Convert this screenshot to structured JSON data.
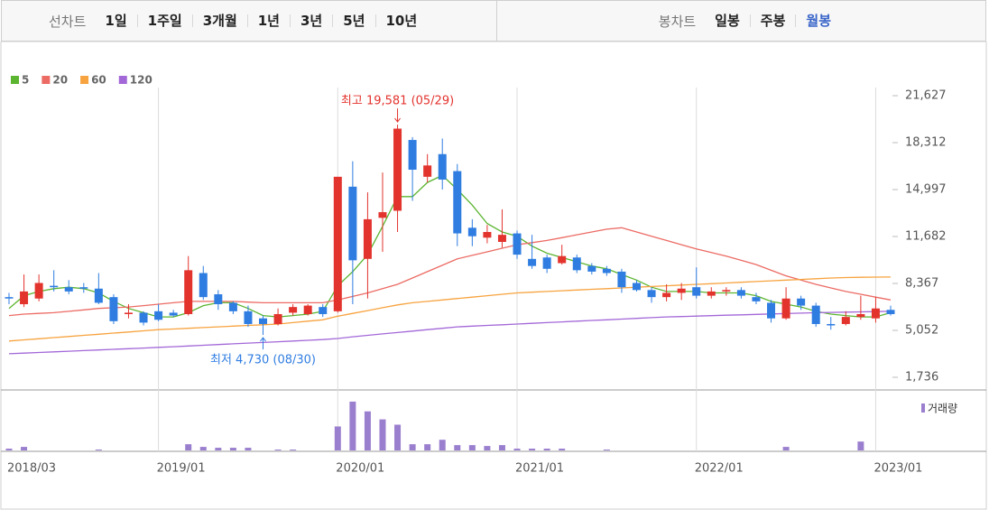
{
  "toolbar": {
    "left_label": "선차트",
    "left_items": [
      "1일",
      "1주일",
      "3개월",
      "1년",
      "3년",
      "5년",
      "10년"
    ],
    "right_label": "봉차트",
    "right_items": [
      "일봉",
      "주봉",
      "월봉"
    ],
    "right_selected": 2
  },
  "chart_data": {
    "type": "candlestick",
    "categories": [
      "2018/03",
      null,
      null,
      null,
      null,
      null,
      null,
      null,
      null,
      null,
      "2019/01",
      null,
      null,
      null,
      null,
      null,
      null,
      null,
      null,
      null,
      null,
      null,
      "2020/01",
      null,
      null,
      null,
      null,
      null,
      null,
      null,
      null,
      null,
      null,
      null,
      "2021/01",
      null,
      null,
      null,
      null,
      null,
      null,
      null,
      null,
      null,
      null,
      null,
      "2022/01",
      null,
      null,
      null,
      null,
      null,
      null,
      null,
      null,
      null,
      null,
      null,
      "2023/01",
      null
    ],
    "open": [
      7400,
      6900,
      7300,
      8200,
      8100,
      8100,
      8000,
      7400,
      6200,
      6300,
      6400,
      6300,
      6200,
      9100,
      7600,
      7000,
      6400,
      5900,
      5500,
      6300,
      6200,
      6700,
      6400,
      15200,
      10100,
      13000,
      13500,
      18500,
      15900,
      17500,
      16300,
      12300,
      11600,
      11300,
      11900,
      10100,
      10200,
      9800,
      10200,
      9600,
      9400,
      9200,
      8400,
      7900,
      7400,
      7700,
      8100,
      7500,
      7800,
      7900,
      7400,
      7000,
      5900,
      7300,
      6800,
      5500,
      5500,
      6000,
      5900,
      6500
    ],
    "high": [
      7700,
      9000,
      9000,
      9300,
      8600,
      8400,
      9100,
      7600,
      6900,
      6400,
      6900,
      6500,
      10300,
      9600,
      7900,
      7100,
      6800,
      6100,
      6600,
      6900,
      6900,
      6900,
      15900,
      17000,
      14800,
      16200,
      19581,
      18700,
      17500,
      18600,
      16800,
      12900,
      12500,
      13600,
      12100,
      11800,
      10400,
      11100,
      10400,
      9800,
      9600,
      9400,
      8600,
      8100,
      8300,
      8400,
      9500,
      8100,
      8100,
      8100,
      7700,
      7200,
      8100,
      7500,
      7000,
      6000,
      6400,
      7500,
      7400,
      6800
    ],
    "low": [
      6900,
      6700,
      7100,
      7800,
      7600,
      7700,
      6900,
      5500,
      5900,
      5400,
      5700,
      6000,
      6100,
      7200,
      6500,
      6200,
      5300,
      4730,
      5400,
      6100,
      6100,
      6000,
      6300,
      6900,
      7300,
      10600,
      12000,
      14200,
      15500,
      15000,
      11000,
      11000,
      11200,
      10900,
      10100,
      9400,
      9100,
      9700,
      9100,
      9000,
      8900,
      7700,
      7800,
      7000,
      7100,
      7200,
      7300,
      7300,
      7500,
      7300,
      6900,
      5600,
      5800,
      6500,
      5300,
      5100,
      5400,
      5800,
      5600,
      6100
    ],
    "close": [
      7300,
      7800,
      8400,
      8100,
      7800,
      8000,
      7000,
      5700,
      6300,
      5600,
      5800,
      6100,
      9300,
      7400,
      6900,
      6400,
      5500,
      5500,
      6200,
      6700,
      6800,
      6200,
      15900,
      10000,
      12900,
      13400,
      19300,
      16400,
      16700,
      15700,
      11900,
      11700,
      12000,
      11800,
      10400,
      9600,
      9400,
      10300,
      9300,
      9200,
      9100,
      8100,
      7900,
      7400,
      7700,
      8000,
      7500,
      7800,
      7900,
      7500,
      7100,
      5900,
      7300,
      6800,
      5500,
      5400,
      6000,
      6200,
      6600,
      6200
    ],
    "up_color": "#e3332d",
    "down_color": "#2f7de1",
    "ylim": [
      844,
      22201
    ],
    "yticks": [
      {
        "value": 1736,
        "label": "1,736"
      },
      {
        "value": 5052,
        "label": "5,052"
      },
      {
        "value": 8367,
        "label": "8,367"
      },
      {
        "value": 11682,
        "label": "11,682"
      },
      {
        "value": 14997,
        "label": "14,997"
      },
      {
        "value": 18312,
        "label": "18,312"
      },
      {
        "value": 21627,
        "label": "21,627"
      }
    ],
    "series": [
      {
        "name": "5",
        "color": "#5cb531",
        "values": [
          6600,
          7500,
          7800,
          8000,
          8100,
          8000,
          7700,
          7100,
          6600,
          6300,
          6000,
          6000,
          6300,
          6800,
          7000,
          7000,
          6600,
          6100,
          6000,
          6100,
          6200,
          6400,
          8200,
          9200,
          10400,
          12400,
          14500,
          14500,
          15500,
          16000,
          15000,
          13900,
          12600,
          12000,
          11700,
          11000,
          10500,
          10200,
          9900,
          9600,
          9400,
          9000,
          8600,
          8100,
          7800,
          7800,
          7800,
          7700,
          7700,
          7700,
          7500,
          7100,
          6900,
          6700,
          6400,
          6200,
          6100,
          6000,
          6000,
          6300
        ]
      },
      {
        "name": "20",
        "color": "#ec6b64",
        "values": [
          6100,
          6200,
          6250,
          6300,
          6400,
          6500,
          6600,
          6650,
          6700,
          6800,
          6900,
          7000,
          7100,
          7100,
          7100,
          7100,
          7050,
          7000,
          7000,
          7000,
          7000,
          7000,
          7200,
          7450,
          7700,
          8000,
          8300,
          8750,
          9200,
          9650,
          10100,
          10350,
          10600,
          10850,
          11100,
          11250,
          11400,
          11600,
          11800,
          12000,
          12200,
          12300,
          12000,
          11700,
          11400,
          11100,
          10800,
          10550,
          10300,
          10000,
          9700,
          9300,
          8900,
          8600,
          8300,
          8050,
          7800,
          7600,
          7400,
          7200
        ]
      },
      {
        "name": "60",
        "color": "#f7a33f",
        "values": [
          4300,
          4380,
          4460,
          4540,
          4620,
          4700,
          4780,
          4860,
          4940,
          5020,
          5100,
          5150,
          5200,
          5250,
          5300,
          5350,
          5400,
          5450,
          5500,
          5600,
          5700,
          5800,
          6050,
          6250,
          6450,
          6650,
          6850,
          7000,
          7100,
          7200,
          7300,
          7400,
          7500,
          7600,
          7700,
          7750,
          7800,
          7850,
          7900,
          7950,
          8000,
          8050,
          8100,
          8150,
          8200,
          8250,
          8300,
          8350,
          8400,
          8450,
          8500,
          8550,
          8600,
          8650,
          8700,
          8750,
          8780,
          8800,
          8810,
          8820
        ]
      },
      {
        "name": "120",
        "color": "#a368d8",
        "values": [
          3400,
          3445,
          3490,
          3535,
          3580,
          3625,
          3670,
          3715,
          3760,
          3805,
          3850,
          3900,
          3950,
          4000,
          4050,
          4100,
          4150,
          4200,
          4250,
          4300,
          4350,
          4400,
          4480,
          4600,
          4700,
          4800,
          4900,
          5000,
          5100,
          5200,
          5300,
          5350,
          5400,
          5450,
          5500,
          5550,
          5600,
          5650,
          5700,
          5750,
          5800,
          5850,
          5900,
          5950,
          6000,
          6030,
          6060,
          6090,
          6120,
          6150,
          6180,
          6210,
          6240,
          6270,
          6300,
          6320,
          6340,
          6360,
          6380,
          6400
        ]
      }
    ],
    "annotations": [
      {
        "label": "최고 19,581 (05/29)",
        "value": 19581,
        "color": "#e3332d"
      },
      {
        "label": "최저 4,730 (08/30)",
        "value": 4730,
        "color": "#2f7de1"
      }
    ],
    "volume": {
      "name": "거래량",
      "color": "#9b7fcf",
      "ylim": [
        0,
        60
      ],
      "values": [
        2,
        4,
        0,
        0,
        0,
        0,
        1,
        0,
        0,
        0,
        0,
        0,
        7,
        4,
        3,
        3,
        3,
        0,
        1,
        1,
        0,
        0,
        27,
        55,
        44,
        35,
        29,
        7,
        7,
        12,
        6,
        6,
        5,
        6,
        2,
        2,
        2,
        2,
        0,
        0,
        1,
        0,
        0,
        0,
        0,
        0,
        0,
        0,
        0,
        0,
        0,
        0,
        4,
        0,
        0,
        0,
        0,
        10,
        0,
        0
      ]
    }
  }
}
